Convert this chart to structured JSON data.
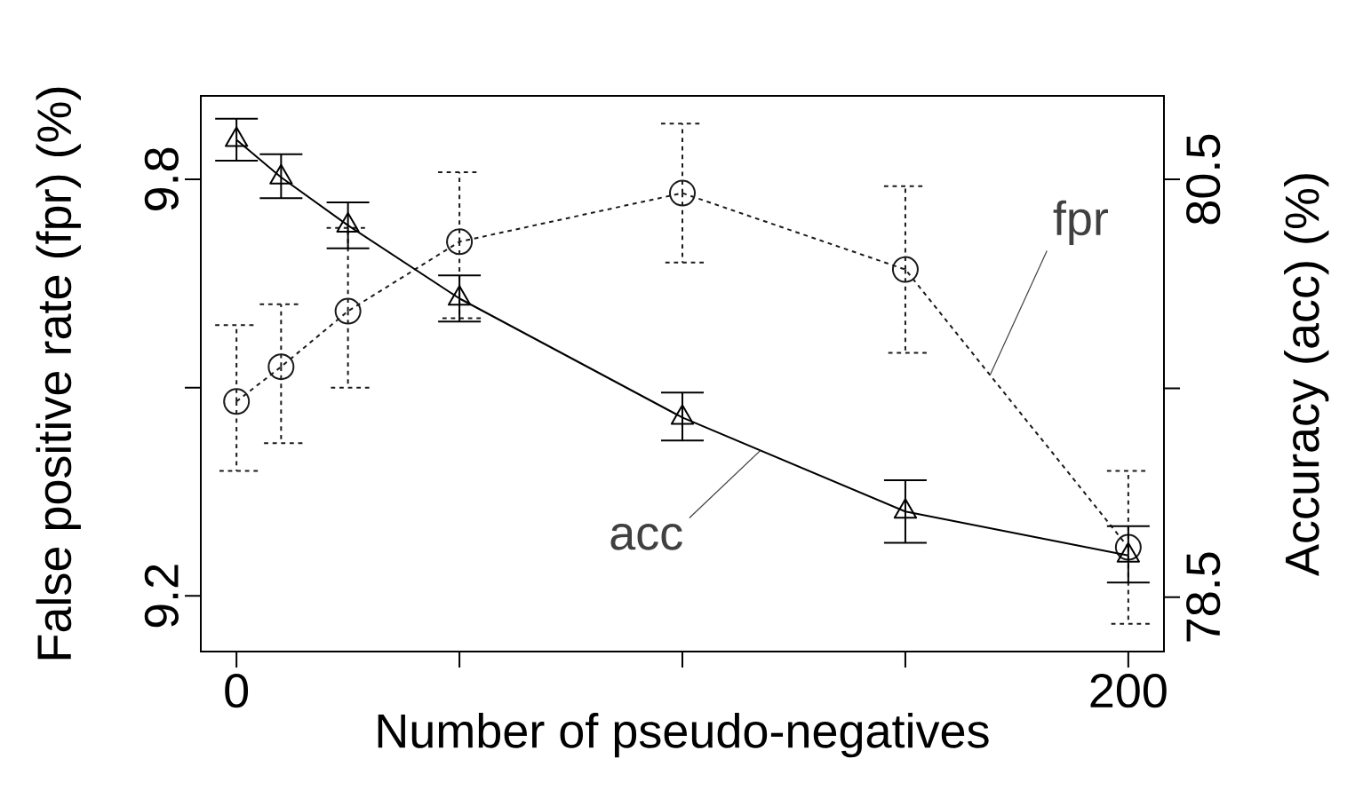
{
  "chart_data": {
    "type": "line",
    "xlabel": "Number of pseudo-negatives",
    "ylabel": "False positive rate (fpr) (%)",
    "y2label": "Accuracy (acc) (%)",
    "x": [
      0,
      10,
      25,
      50,
      100,
      150,
      200
    ],
    "xlim": [
      -8,
      208
    ],
    "xticks": [
      0,
      {
        "value": 50,
        "label": null
      },
      {
        "value": 100,
        "label": null
      },
      {
        "value": 150,
        "label": null
      },
      200
    ],
    "ylim": [
      9.12,
      9.92
    ],
    "yticks": [
      {
        "value": 9.2,
        "label": "9.2"
      },
      {
        "value": 9.5,
        "label": null
      },
      {
        "value": 9.8,
        "label": "9.8"
      }
    ],
    "y2lim": [
      78.24,
      80.9
    ],
    "y2ticks": [
      {
        "value": 78.5,
        "label": "78.5"
      },
      {
        "value": 79.5,
        "label": null
      },
      {
        "value": 80.5,
        "label": "80.5"
      }
    ],
    "series": [
      {
        "name": "fpr",
        "color": "#1a1a1a",
        "marker": "circle",
        "line_style": "dotted",
        "values": [
          9.48,
          9.53,
          9.61,
          9.71,
          9.78,
          9.67,
          9.27
        ],
        "errors": [
          [
            9.38,
            9.59
          ],
          [
            9.42,
            9.62
          ],
          [
            9.5,
            9.73
          ],
          [
            9.6,
            9.81
          ],
          [
            9.68,
            9.88
          ],
          [
            9.55,
            9.79
          ],
          [
            9.16,
            9.38
          ]
        ]
      },
      {
        "name": "acc",
        "color": "#000000",
        "marker": "triangle",
        "line_style": "solid",
        "axis": "y2",
        "values": [
          80.69,
          80.51,
          80.28,
          79.93,
          79.36,
          78.91,
          78.7
        ],
        "errors": [
          [
            80.59,
            80.79
          ],
          [
            80.41,
            80.62
          ],
          [
            80.17,
            80.39
          ],
          [
            79.82,
            80.04
          ],
          [
            79.25,
            79.48
          ],
          [
            78.76,
            79.06
          ],
          [
            78.57,
            78.84
          ]
        ]
      }
    ],
    "legend": false,
    "grid": false
  }
}
